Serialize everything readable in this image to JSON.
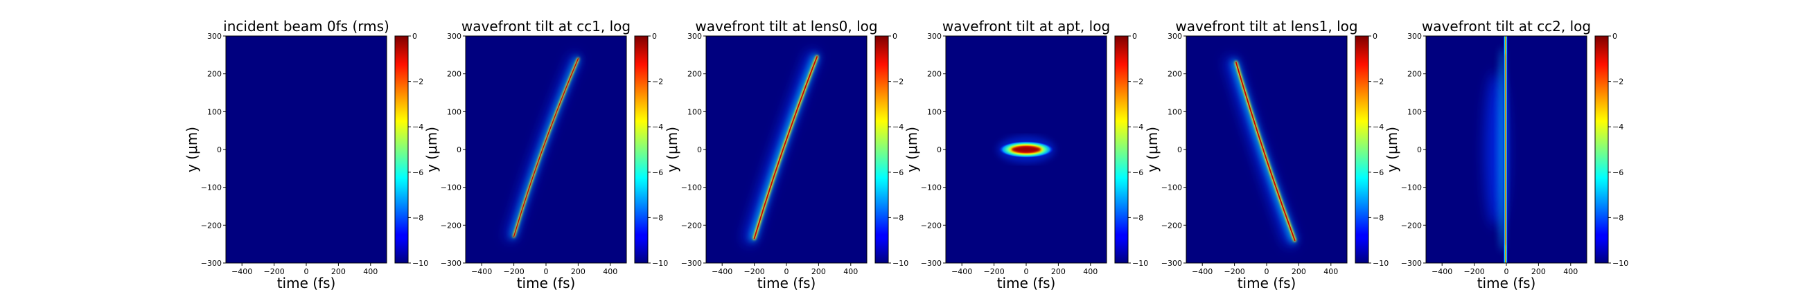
{
  "figure": {
    "background": "#ffffff"
  },
  "colormap": {
    "name": "jet",
    "background_color": "#00007f"
  },
  "chart_data": [
    {
      "type": "heatmap",
      "title": "incident beam 0fs (rms)",
      "xlabel": "time (fs)",
      "ylabel": "y (μm)",
      "xlim": [
        -500,
        500
      ],
      "ylim": [
        -300,
        300
      ],
      "x_ticks": [
        -400,
        -200,
        0,
        200,
        400
      ],
      "y_ticks": [
        -300,
        -200,
        -100,
        0,
        100,
        200,
        300
      ],
      "colorbar": {
        "range": [
          -10,
          0
        ],
        "ticks": [
          0,
          -2,
          -4,
          -6,
          -8,
          -10
        ]
      },
      "feature": null
    },
    {
      "type": "heatmap",
      "title": "wavefront tilt at cc1, log",
      "xlabel": "time (fs)",
      "ylabel": "y (μm)",
      "xlim": [
        -500,
        500
      ],
      "ylim": [
        -300,
        300
      ],
      "x_ticks": [
        -400,
        -200,
        0,
        200,
        400
      ],
      "y_ticks": [
        -300,
        -200,
        -100,
        0,
        100,
        200,
        300
      ],
      "colorbar": {
        "range": [
          -10,
          0
        ],
        "ticks": [
          0,
          -2,
          -4,
          -6,
          -8,
          -10
        ]
      },
      "feature": {
        "kind": "tilted",
        "x_bottom": -200,
        "y_bottom": -230,
        "x_top": 200,
        "y_top": 240,
        "width_fs": 12,
        "bow_fs": 35,
        "halo": "left"
      }
    },
    {
      "type": "heatmap",
      "title": "wavefront tilt at lens0, log",
      "xlabel": "time (fs)",
      "ylabel": "y (μm)",
      "xlim": [
        -500,
        500
      ],
      "ylim": [
        -300,
        300
      ],
      "x_ticks": [
        -400,
        -200,
        0,
        200,
        400
      ],
      "y_ticks": [
        -300,
        -200,
        -100,
        0,
        100,
        200,
        300
      ],
      "colorbar": {
        "range": [
          -10,
          0
        ],
        "ticks": [
          0,
          -2,
          -4,
          -6,
          -8,
          -10
        ]
      },
      "feature": {
        "kind": "tilted",
        "x_bottom": -200,
        "y_bottom": -235,
        "x_top": 190,
        "y_top": 245,
        "width_fs": 16,
        "bow_fs": 25,
        "halo": "left"
      }
    },
    {
      "type": "heatmap",
      "title": "wavefront tilt at apt, log",
      "xlabel": "time (fs)",
      "ylabel": "y (μm)",
      "xlim": [
        -500,
        500
      ],
      "ylim": [
        -300,
        300
      ],
      "x_ticks": [
        -400,
        -200,
        0,
        200,
        400
      ],
      "y_ticks": [
        -300,
        -200,
        -100,
        0,
        100,
        200,
        300
      ],
      "colorbar": {
        "range": [
          -10,
          0
        ],
        "ticks": [
          0,
          -2,
          -4,
          -6,
          -8,
          -10
        ]
      },
      "feature": {
        "kind": "spot",
        "x_center": 0,
        "y_center": 0,
        "half_width_fs": 170,
        "half_height_um": 22
      }
    },
    {
      "type": "heatmap",
      "title": "wavefront tilt at lens1, log",
      "xlabel": "time (fs)",
      "ylabel": "y (μm)",
      "xlim": [
        -500,
        500
      ],
      "ylim": [
        -300,
        300
      ],
      "x_ticks": [
        -400,
        -200,
        0,
        200,
        400
      ],
      "y_ticks": [
        -300,
        -200,
        -100,
        0,
        100,
        200,
        300
      ],
      "colorbar": {
        "range": [
          -10,
          0
        ],
        "ticks": [
          0,
          -2,
          -4,
          -6,
          -8,
          -10
        ]
      },
      "feature": {
        "kind": "tilted",
        "x_bottom": 175,
        "y_bottom": -240,
        "x_top": -190,
        "y_top": 230,
        "width_fs": 16,
        "bow_fs": 20,
        "halo": "left"
      }
    },
    {
      "type": "heatmap",
      "title": "wavefront tilt at cc2, log",
      "xlabel": "time (fs)",
      "ylabel": "y (μm)",
      "xlim": [
        -500,
        500
      ],
      "ylim": [
        -300,
        300
      ],
      "x_ticks": [
        -400,
        -200,
        0,
        200,
        400
      ],
      "y_ticks": [
        -300,
        -200,
        -100,
        0,
        100,
        200,
        300
      ],
      "colorbar": {
        "range": [
          -10,
          0
        ],
        "ticks": [
          0,
          -2,
          -4,
          -6,
          -8,
          -10
        ]
      },
      "feature": {
        "kind": "vertical",
        "x_center": -5,
        "width_fs": 10,
        "halo": "left"
      }
    }
  ]
}
